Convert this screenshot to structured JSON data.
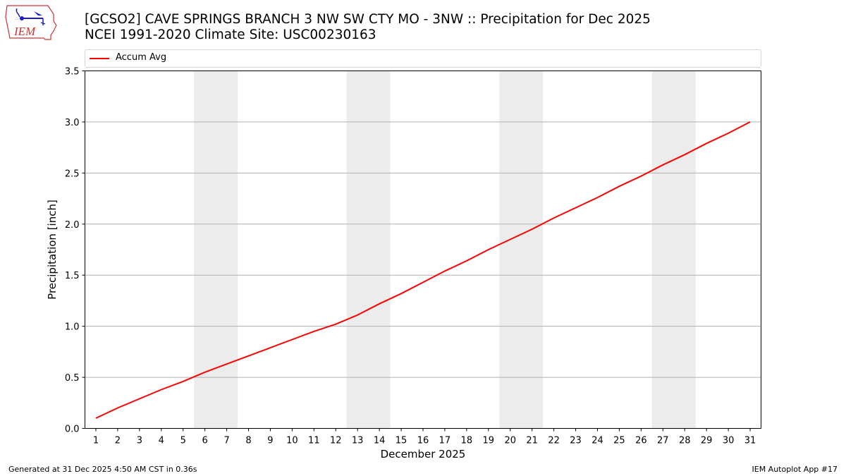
{
  "header": {
    "title_line1": "[GCSO2] CAVE SPRINGS BRANCH 3 NW SW CTY MO - 3NW :: Precipitation for Dec 2025",
    "title_line2": "NCEI 1991-2020 Climate Site: USC00230163",
    "logo_text": "IEM"
  },
  "legend": {
    "items": [
      {
        "label": "Accum Avg",
        "color": "#ff0000"
      }
    ]
  },
  "footer": {
    "generated": "Generated at 31 Dec 2025 4:50 AM CST in 0.36s",
    "app": "IEM Autoplot App #17"
  },
  "colors": {
    "line": "#ff0000",
    "weekend_shade": "#ececec",
    "grid": "#b0b0b0",
    "logo_red": "#cc3333",
    "logo_blue": "#1a1acc"
  },
  "chart_data": {
    "type": "line",
    "title": "[GCSO2] CAVE SPRINGS BRANCH 3 NW SW CTY MO - 3NW :: Precipitation for Dec 2025",
    "subtitle": "NCEI 1991-2020 Climate Site: USC00230163",
    "xlabel": "December 2025",
    "ylabel": "Precipitation [inch]",
    "ylim": [
      0,
      3.5
    ],
    "xlim": [
      0.5,
      31.5
    ],
    "yticks": [
      0.0,
      0.5,
      1.0,
      1.5,
      2.0,
      2.5,
      3.0,
      3.5
    ],
    "ytick_labels": [
      "0.0",
      "0.5",
      "1.0",
      "1.5",
      "2.0",
      "2.5",
      "3.0",
      "3.5"
    ],
    "x": [
      1,
      2,
      3,
      4,
      5,
      6,
      7,
      8,
      9,
      10,
      11,
      12,
      13,
      14,
      15,
      16,
      17,
      18,
      19,
      20,
      21,
      22,
      23,
      24,
      25,
      26,
      27,
      28,
      29,
      30,
      31
    ],
    "xtick_labels": [
      "1",
      "2",
      "3",
      "4",
      "5",
      "6",
      "7",
      "8",
      "9",
      "10",
      "11",
      "12",
      "13",
      "14",
      "15",
      "16",
      "17",
      "18",
      "19",
      "20",
      "21",
      "22",
      "23",
      "24",
      "25",
      "26",
      "27",
      "28",
      "29",
      "30",
      "31"
    ],
    "grid": "y-major",
    "legend_position": "top",
    "shaded_weekends": [
      [
        5.5,
        7.5
      ],
      [
        12.5,
        14.5
      ],
      [
        19.5,
        21.5
      ],
      [
        26.5,
        28.5
      ]
    ],
    "series": [
      {
        "name": "Accum Avg",
        "color": "#ff0000",
        "values": [
          0.1,
          0.2,
          0.29,
          0.38,
          0.46,
          0.55,
          0.63,
          0.71,
          0.79,
          0.87,
          0.95,
          1.02,
          1.11,
          1.22,
          1.32,
          1.43,
          1.54,
          1.64,
          1.75,
          1.85,
          1.95,
          2.06,
          2.16,
          2.26,
          2.37,
          2.47,
          2.58,
          2.68,
          2.79,
          2.89,
          3.0
        ]
      }
    ]
  }
}
